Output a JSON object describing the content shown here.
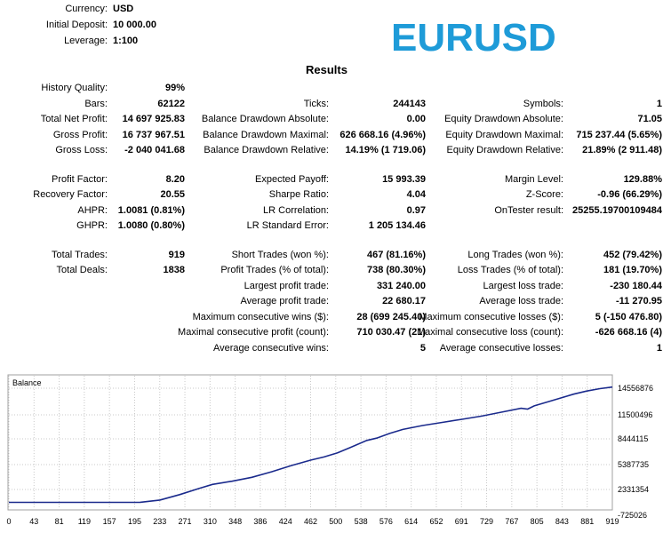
{
  "header": {
    "currency_label": "Currency:",
    "currency_value": "USD",
    "deposit_label": "Initial Deposit:",
    "deposit_value": "10 000.00",
    "leverage_label": "Leverage:",
    "leverage_value": "1:100",
    "symbol_title": "EURUSD",
    "results_title": "Results"
  },
  "left": {
    "history_quality_label": "History Quality:",
    "history_quality_value": "99%",
    "bars_label": "Bars:",
    "bars_value": "62122",
    "net_profit_label": "Total Net Profit:",
    "net_profit_value": "14 697 925.83",
    "gross_profit_label": "Gross Profit:",
    "gross_profit_value": "16 737 967.51",
    "gross_loss_label": "Gross Loss:",
    "gross_loss_value": "-2 040 041.68",
    "profit_factor_label": "Profit Factor:",
    "profit_factor_value": "8.20",
    "recovery_factor_label": "Recovery Factor:",
    "recovery_factor_value": "20.55",
    "ahpr_label": "AHPR:",
    "ahpr_value": "1.0081 (0.81%)",
    "ghpr_label": "GHPR:",
    "ghpr_value": "1.0080 (0.80%)",
    "total_trades_label": "Total Trades:",
    "total_trades_value": "919",
    "total_deals_label": "Total Deals:",
    "total_deals_value": "1838"
  },
  "middle": {
    "ticks_label": "Ticks:",
    "ticks_value": "244143",
    "bal_dd_abs_label": "Balance Drawdown Absolute:",
    "bal_dd_abs_value": "0.00",
    "bal_dd_max_label": "Balance Drawdown Maximal:",
    "bal_dd_max_value": "626 668.16 (4.96%)",
    "bal_dd_rel_label": "Balance Drawdown Relative:",
    "bal_dd_rel_value": "14.19% (1 719.06)",
    "expected_payoff_label": "Expected Payoff:",
    "expected_payoff_value": "15 993.39",
    "sharpe_label": "Sharpe Ratio:",
    "sharpe_value": "4.04",
    "lr_corr_label": "LR Correlation:",
    "lr_corr_value": "0.97",
    "lr_err_label": "LR Standard Error:",
    "lr_err_value": "1 205 134.46",
    "short_trades_label": "Short Trades (won %):",
    "short_trades_value": "467 (81.16%)",
    "profit_trades_label": "Profit Trades (% of total):",
    "profit_trades_value": "738 (80.30%)",
    "largest_profit_label": "Largest profit trade:",
    "largest_profit_value": "331 240.00",
    "avg_profit_label": "Average profit trade:",
    "avg_profit_value": "22 680.17",
    "max_cons_wins_label": "Maximum consecutive wins ($):",
    "max_cons_wins_value": "28 (699 245.40)",
    "maximal_cons_profit_label": "Maximal consecutive profit (count):",
    "maximal_cons_profit_value": "710 030.47 (21)",
    "avg_cons_wins_label": "Average consecutive wins:",
    "avg_cons_wins_value": "5"
  },
  "right": {
    "symbols_label": "Symbols:",
    "symbols_value": "1",
    "eq_dd_abs_label": "Equity Drawdown Absolute:",
    "eq_dd_abs_value": "71.05",
    "eq_dd_max_label": "Equity Drawdown Maximal:",
    "eq_dd_max_value": "715 237.44 (5.65%)",
    "eq_dd_rel_label": "Equity Drawdown Relative:",
    "eq_dd_rel_value": "21.89% (2 911.48)",
    "margin_level_label": "Margin Level:",
    "margin_level_value": "129.88%",
    "zscore_label": "Z-Score:",
    "zscore_value": "-0.96 (66.29%)",
    "ontester_label": "OnTester result:",
    "ontester_value": "25255.19700109484",
    "long_trades_label": "Long Trades (won %):",
    "long_trades_value": "452 (79.42%)",
    "loss_trades_label": "Loss Trades (% of total):",
    "loss_trades_value": "181 (19.70%)",
    "largest_loss_label": "Largest loss trade:",
    "largest_loss_value": "-230 180.44",
    "avg_loss_label": "Average loss trade:",
    "avg_loss_value": "-11 270.95",
    "max_cons_losses_label": "Maximum consecutive losses ($):",
    "max_cons_losses_value": "5 (-150 476.80)",
    "maximal_cons_loss_label": "Maximal consecutive loss (count):",
    "maximal_cons_loss_value": "-626 668.16 (4)",
    "avg_cons_losses_label": "Average consecutive losses:",
    "avg_cons_losses_value": "1"
  },
  "chart_data": {
    "type": "line",
    "title": "Balance",
    "line_color": "#1a2a8c",
    "x_ticks": [
      "0",
      "43",
      "81",
      "119",
      "157",
      "195",
      "233",
      "271",
      "310",
      "348",
      "386",
      "424",
      "462",
      "500",
      "538",
      "576",
      "614",
      "652",
      "691",
      "729",
      "767",
      "805",
      "843",
      "881",
      "919"
    ],
    "y_ticks": [
      "14556876",
      "11500496",
      "8444115",
      "5387735",
      "2331354",
      "-725026"
    ],
    "ylim": [
      -725026,
      14556876
    ],
    "xlim": [
      0,
      919
    ],
    "x": [
      0,
      100,
      180,
      200,
      230,
      260,
      290,
      310,
      340,
      370,
      400,
      430,
      460,
      480,
      500,
      520,
      545,
      560,
      580,
      600,
      630,
      660,
      690,
      720,
      750,
      780,
      790,
      800,
      820,
      840,
      860,
      880,
      900,
      919
    ],
    "y": [
      10000,
      10000,
      10000,
      20000,
      300000,
      1000000,
      1800000,
      2300000,
      2700000,
      3200000,
      3900000,
      4700000,
      5400000,
      5800000,
      6300000,
      7000000,
      7900000,
      8200000,
      8800000,
      9300000,
      9800000,
      10200000,
      10600000,
      11000000,
      11500000,
      12000000,
      11900000,
      12300000,
      12800000,
      13300000,
      13800000,
      14200000,
      14500000,
      14700000
    ]
  }
}
